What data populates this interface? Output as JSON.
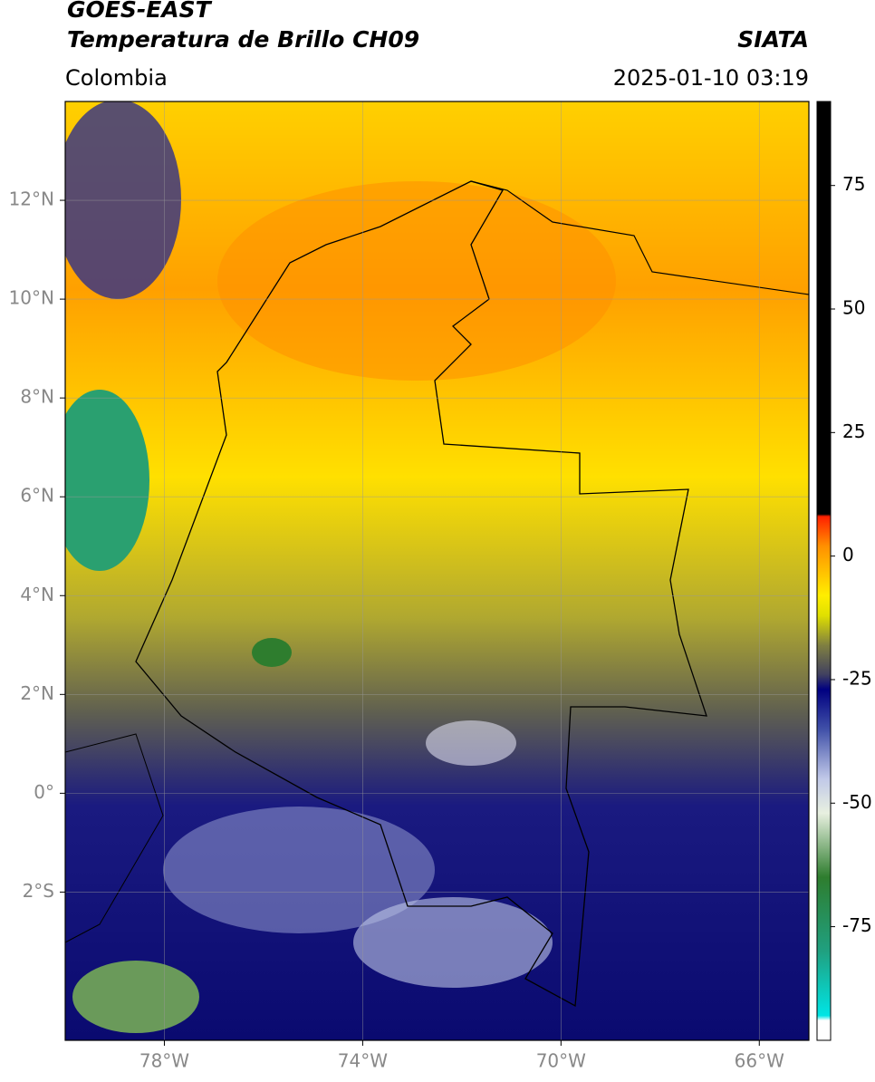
{
  "header": {
    "title": "GOES-EAST",
    "subtitle": "Temperatura de Brillo CH09",
    "region": "Colombia",
    "source": "SIATA",
    "timestamp": "2025-01-10 03:19"
  },
  "map": {
    "xlim": [
      -80,
      -65
    ],
    "ylim": [
      -5,
      14
    ],
    "xticks": [
      {
        "value": -78,
        "label": "78°W"
      },
      {
        "value": -74,
        "label": "74°W"
      },
      {
        "value": -70,
        "label": "70°W"
      },
      {
        "value": -66,
        "label": "66°W"
      }
    ],
    "yticks": [
      {
        "value": 12,
        "label": "12°N"
      },
      {
        "value": 10,
        "label": "10°N"
      },
      {
        "value": 8,
        "label": "8°N"
      },
      {
        "value": 6,
        "label": "6°N"
      },
      {
        "value": 4,
        "label": "4°N"
      },
      {
        "value": 2,
        "label": "2°N"
      },
      {
        "value": 0,
        "label": "0°"
      },
      {
        "value": -2,
        "label": "2°S"
      }
    ],
    "grid": true
  },
  "colorbar": {
    "clim": [
      -98,
      92
    ],
    "ticks": [
      -75,
      -50,
      -25,
      0,
      25,
      50,
      75
    ],
    "colormap": [
      {
        "value": -98,
        "color": "#ffffff"
      },
      {
        "value": -94,
        "color": "#ffffff"
      },
      {
        "value": -93,
        "color": "#00e5e5"
      },
      {
        "value": -80,
        "color": "#20a080"
      },
      {
        "value": -65,
        "color": "#2e7d2e"
      },
      {
        "value": -52,
        "color": "#e8f0e0"
      },
      {
        "value": -45,
        "color": "#c0c8e8"
      },
      {
        "value": -35,
        "color": "#4050a8"
      },
      {
        "value": -27,
        "color": "#000080"
      },
      {
        "value": -24,
        "color": "#404060"
      },
      {
        "value": -18,
        "color": "#808040"
      },
      {
        "value": -12,
        "color": "#e0e000"
      },
      {
        "value": -8,
        "color": "#ffee00"
      },
      {
        "value": 2,
        "color": "#ff9000"
      },
      {
        "value": 8,
        "color": "#ff2000"
      },
      {
        "value": 8.5,
        "color": "#000000"
      },
      {
        "value": 92,
        "color": "#000000"
      }
    ]
  }
}
